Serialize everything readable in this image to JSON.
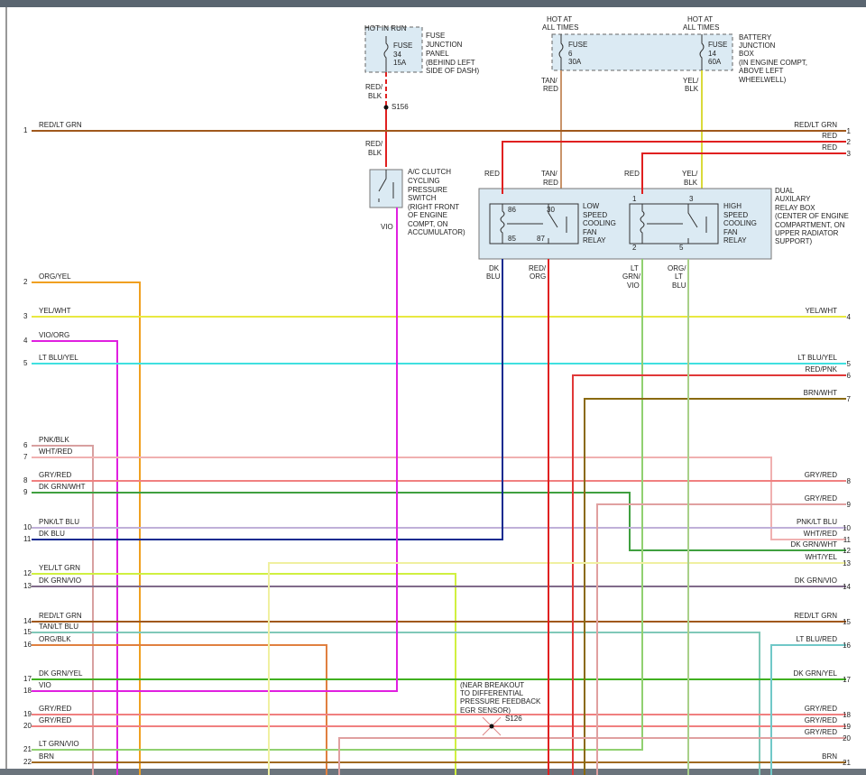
{
  "fuse_junction_panel": {
    "supply": "HOT IN RUN",
    "fuse": [
      "FUSE",
      "34",
      "15A"
    ],
    "description": [
      "FUSE",
      "JUNCTION",
      "PANEL",
      "(BEHIND LEFT",
      "SIDE OF DASH)"
    ],
    "wire_label": [
      "RED/",
      "BLK"
    ],
    "splice": "S156",
    "wire_label_2": [
      "RED/",
      "BLK"
    ]
  },
  "ac_switch": {
    "description": [
      "A/C CLUTCH",
      "CYCLING",
      "PRESSURE",
      "SWITCH",
      "(RIGHT FRONT",
      "OF ENGINE",
      "COMPT, ON",
      "ACCUMULATOR)"
    ],
    "wire_label": "VIO"
  },
  "battery_junction_box": {
    "supply_1": [
      "HOT AT",
      "ALL TIMES"
    ],
    "supply_2": [
      "HOT AT",
      "ALL TIMES"
    ],
    "fuse_1": [
      "FUSE",
      "6",
      "30A"
    ],
    "fuse_2": [
      "FUSE",
      "14",
      "60A"
    ],
    "description": [
      "BATTERY",
      "JUNCTION",
      "BOX",
      "(IN ENGINE COMPT,",
      "ABOVE LEFT",
      "WHEELWELL)"
    ],
    "wire_1": [
      "TAN/",
      "RED"
    ],
    "wire_2": [
      "YEL/",
      "BLK"
    ]
  },
  "relay_box": {
    "low_relay": {
      "pins": [
        "86",
        "30",
        "85",
        "87"
      ],
      "name": [
        "LOW",
        "SPEED",
        "COOLING",
        "FAN",
        "RELAY"
      ]
    },
    "high_relay": {
      "pins": [
        "1",
        "3",
        "2",
        "5"
      ],
      "name": [
        "HIGH",
        "SPEED",
        "COOLING",
        "FAN",
        "RELAY"
      ]
    },
    "description": [
      "DUAL",
      "AUXILARY",
      "RELAY BOX",
      "(CENTER OF ENGINE",
      "COMPARTMENT, ON",
      "UPPER RADIATOR",
      "SUPPORT)"
    ],
    "input_labels": [
      [
        "RED"
      ],
      [
        "TAN/",
        "RED"
      ],
      [
        "RED"
      ],
      [
        "YEL/",
        "BLK"
      ]
    ],
    "output_labels": [
      [
        "DK",
        "BLU"
      ],
      [
        "RED/",
        "ORG"
      ],
      [
        "LT",
        "GRN/",
        "VIO"
      ],
      [
        "ORG/",
        "LT",
        "BLU"
      ]
    ]
  },
  "splice_s126": {
    "note": [
      "(NEAR BREAKOUT",
      "TO DIFFERENTIAL",
      "PRESSURE FEEDBACK",
      "EGR SENSOR)"
    ],
    "name": "S126"
  },
  "left_connector": [
    {
      "pin": "1",
      "wire": "RED/LT GRN",
      "color": "#a0581c"
    },
    {
      "pin": "2",
      "wire": "ORG/YEL",
      "color": "#f0a020"
    },
    {
      "pin": "3",
      "wire": "YEL/WHT",
      "color": "#e8e840"
    },
    {
      "pin": "4",
      "wire": "VIO/ORG",
      "color": "#e020e0"
    },
    {
      "pin": "5",
      "wire": "LT BLU/YEL",
      "color": "#40e0e0"
    },
    {
      "pin": "6",
      "wire": "PNK/BLK",
      "color": "#d8a0a0"
    },
    {
      "pin": "7",
      "wire": "WHT/RED",
      "color": "#f0b0b0"
    },
    {
      "pin": "8",
      "wire": "GRY/RED",
      "color": "#f08080"
    },
    {
      "pin": "9",
      "wire": "DK GRN/WHT",
      "color": "#40a040"
    },
    {
      "pin": "10",
      "wire": "PNK/LT BLU",
      "color": "#c0b0d8"
    },
    {
      "pin": "11",
      "wire": "DK BLU",
      "color": "#102a90"
    },
    {
      "pin": "12",
      "wire": "YEL/LT GRN",
      "color": "#d0f040"
    },
    {
      "pin": "13",
      "wire": "DK GRN/VIO",
      "color": "#806a8a"
    },
    {
      "pin": "14",
      "wire": "RED/LT GRN",
      "color": "#a0581c"
    },
    {
      "pin": "15",
      "wire": "TAN/LT BLU",
      "color": "#80c8b8"
    },
    {
      "pin": "16",
      "wire": "ORG/BLK",
      "color": "#e08040"
    },
    {
      "pin": "17",
      "wire": "DK GRN/YEL",
      "color": "#40b020"
    },
    {
      "pin": "18",
      "wire": "VIO",
      "color": "#e020e0"
    },
    {
      "pin": "19",
      "wire": "GRY/RED",
      "color": "#f08080"
    },
    {
      "pin": "20",
      "wire": "GRY/RED",
      "color": "#f08080"
    },
    {
      "pin": "21",
      "wire": "LT GRN/VIO",
      "color": "#90d070"
    },
    {
      "pin": "22",
      "wire": "BRN",
      "color": "#a06a20"
    }
  ],
  "right_connector": [
    {
      "pin": "1",
      "wire": "RED/LT GRN",
      "color": "#a0581c"
    },
    {
      "pin": "2",
      "wire": "RED",
      "color": "#e02020"
    },
    {
      "pin": "3",
      "wire": "RED",
      "color": "#e02020"
    },
    {
      "pin": "4",
      "wire": "YEL/WHT",
      "color": "#e8e840"
    },
    {
      "pin": "5",
      "wire": "LT BLU/YEL",
      "color": "#40e0e0"
    },
    {
      "pin": "6",
      "wire": "RED/PNK",
      "color": "#e03838"
    },
    {
      "pin": "7",
      "wire": "BRN/WHT",
      "color": "#8a6a10"
    },
    {
      "pin": "8",
      "wire": "GRY/RED",
      "color": "#f08080"
    },
    {
      "pin": "9",
      "wire": "GRY/RED",
      "color": "#e0a0a0"
    },
    {
      "pin": "10",
      "wire": "PNK/LT BLU",
      "color": "#c0b0d8"
    },
    {
      "pin": "11",
      "wire": "WHT/RED",
      "color": "#f0b0b0"
    },
    {
      "pin": "12",
      "wire": "DK GRN/WHT",
      "color": "#40a040"
    },
    {
      "pin": "13",
      "wire": "WHT/YEL",
      "color": "#f0f0a0"
    },
    {
      "pin": "14",
      "wire": "DK GRN/VIO",
      "color": "#806a8a"
    },
    {
      "pin": "15",
      "wire": "RED/LT GRN",
      "color": "#a0581c"
    },
    {
      "pin": "16",
      "wire": "LT BLU/RED",
      "color": "#70c8c8"
    },
    {
      "pin": "17",
      "wire": "DK GRN/YEL",
      "color": "#40b020"
    },
    {
      "pin": "18",
      "wire": "GRY/RED",
      "color": "#f08080"
    },
    {
      "pin": "19",
      "wire": "GRY/RED",
      "color": "#f08080"
    },
    {
      "pin": "20",
      "wire": "GRY/RED",
      "color": "#e0a0a0"
    },
    {
      "pin": "21",
      "wire": "BRN",
      "color": "#a06a20"
    }
  ]
}
